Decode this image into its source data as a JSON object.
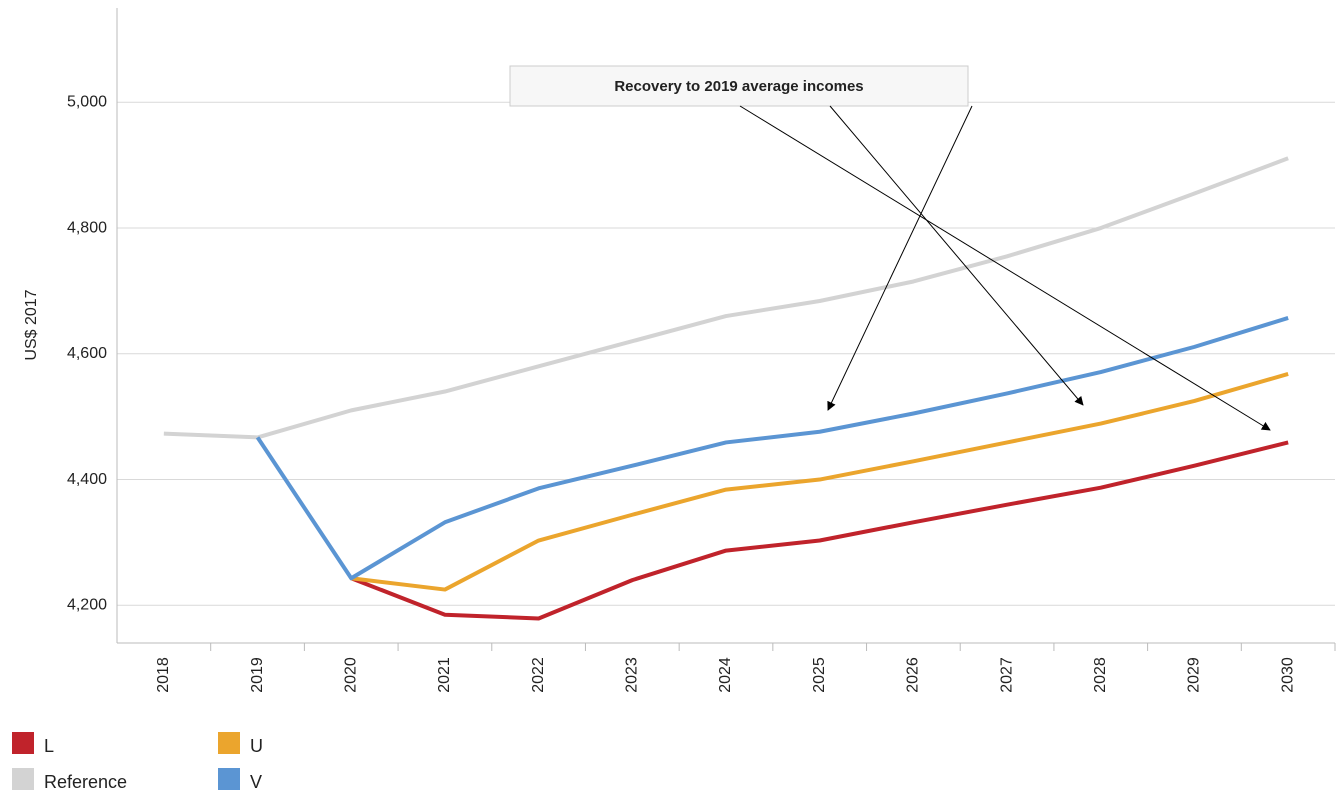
{
  "chart_data": {
    "type": "line",
    "y_label": "US$ 2017",
    "annotation": "Recovery to 2019 average incomes",
    "categories": [
      "2018",
      "2019",
      "2020",
      "2021",
      "2022",
      "2023",
      "2024",
      "2025",
      "2026",
      "2027",
      "2028",
      "2029",
      "2030"
    ],
    "series": [
      {
        "name": "L",
        "color": "#c0232b",
        "values": [
          null,
          null,
          4243,
          4185,
          4179,
          4240,
          4287,
          4303,
          4332,
          4360,
          4387,
          4422,
          4459
        ]
      },
      {
        "name": "U",
        "color": "#eba52d",
        "values": [
          null,
          null,
          4243,
          4225,
          4303,
          4344,
          4384,
          4400,
          4429,
          4459,
          4489,
          4525,
          4568
        ]
      },
      {
        "name": "Reference",
        "color": "#d3d3d3",
        "values": [
          4473,
          4467,
          4510,
          4540,
          4580,
          4620,
          4660,
          4684,
          4715,
          4755,
          4800,
          4855,
          4911
        ]
      },
      {
        "name": "V",
        "color": "#5b95d3",
        "values": [
          null,
          4467,
          4243,
          4332,
          4386,
          4422,
          4459,
          4476,
          4505,
          4537,
          4571,
          4611,
          4657
        ]
      }
    ],
    "ylim": [
      4140,
      5150
    ],
    "yticks": [
      {
        "value": 4200,
        "label": "4,200"
      },
      {
        "value": 4400,
        "label": "4,400"
      },
      {
        "value": 4600,
        "label": "4,600"
      },
      {
        "value": 4800,
        "label": "4,800"
      },
      {
        "value": 5000,
        "label": "5,000"
      }
    ],
    "grid": true
  }
}
